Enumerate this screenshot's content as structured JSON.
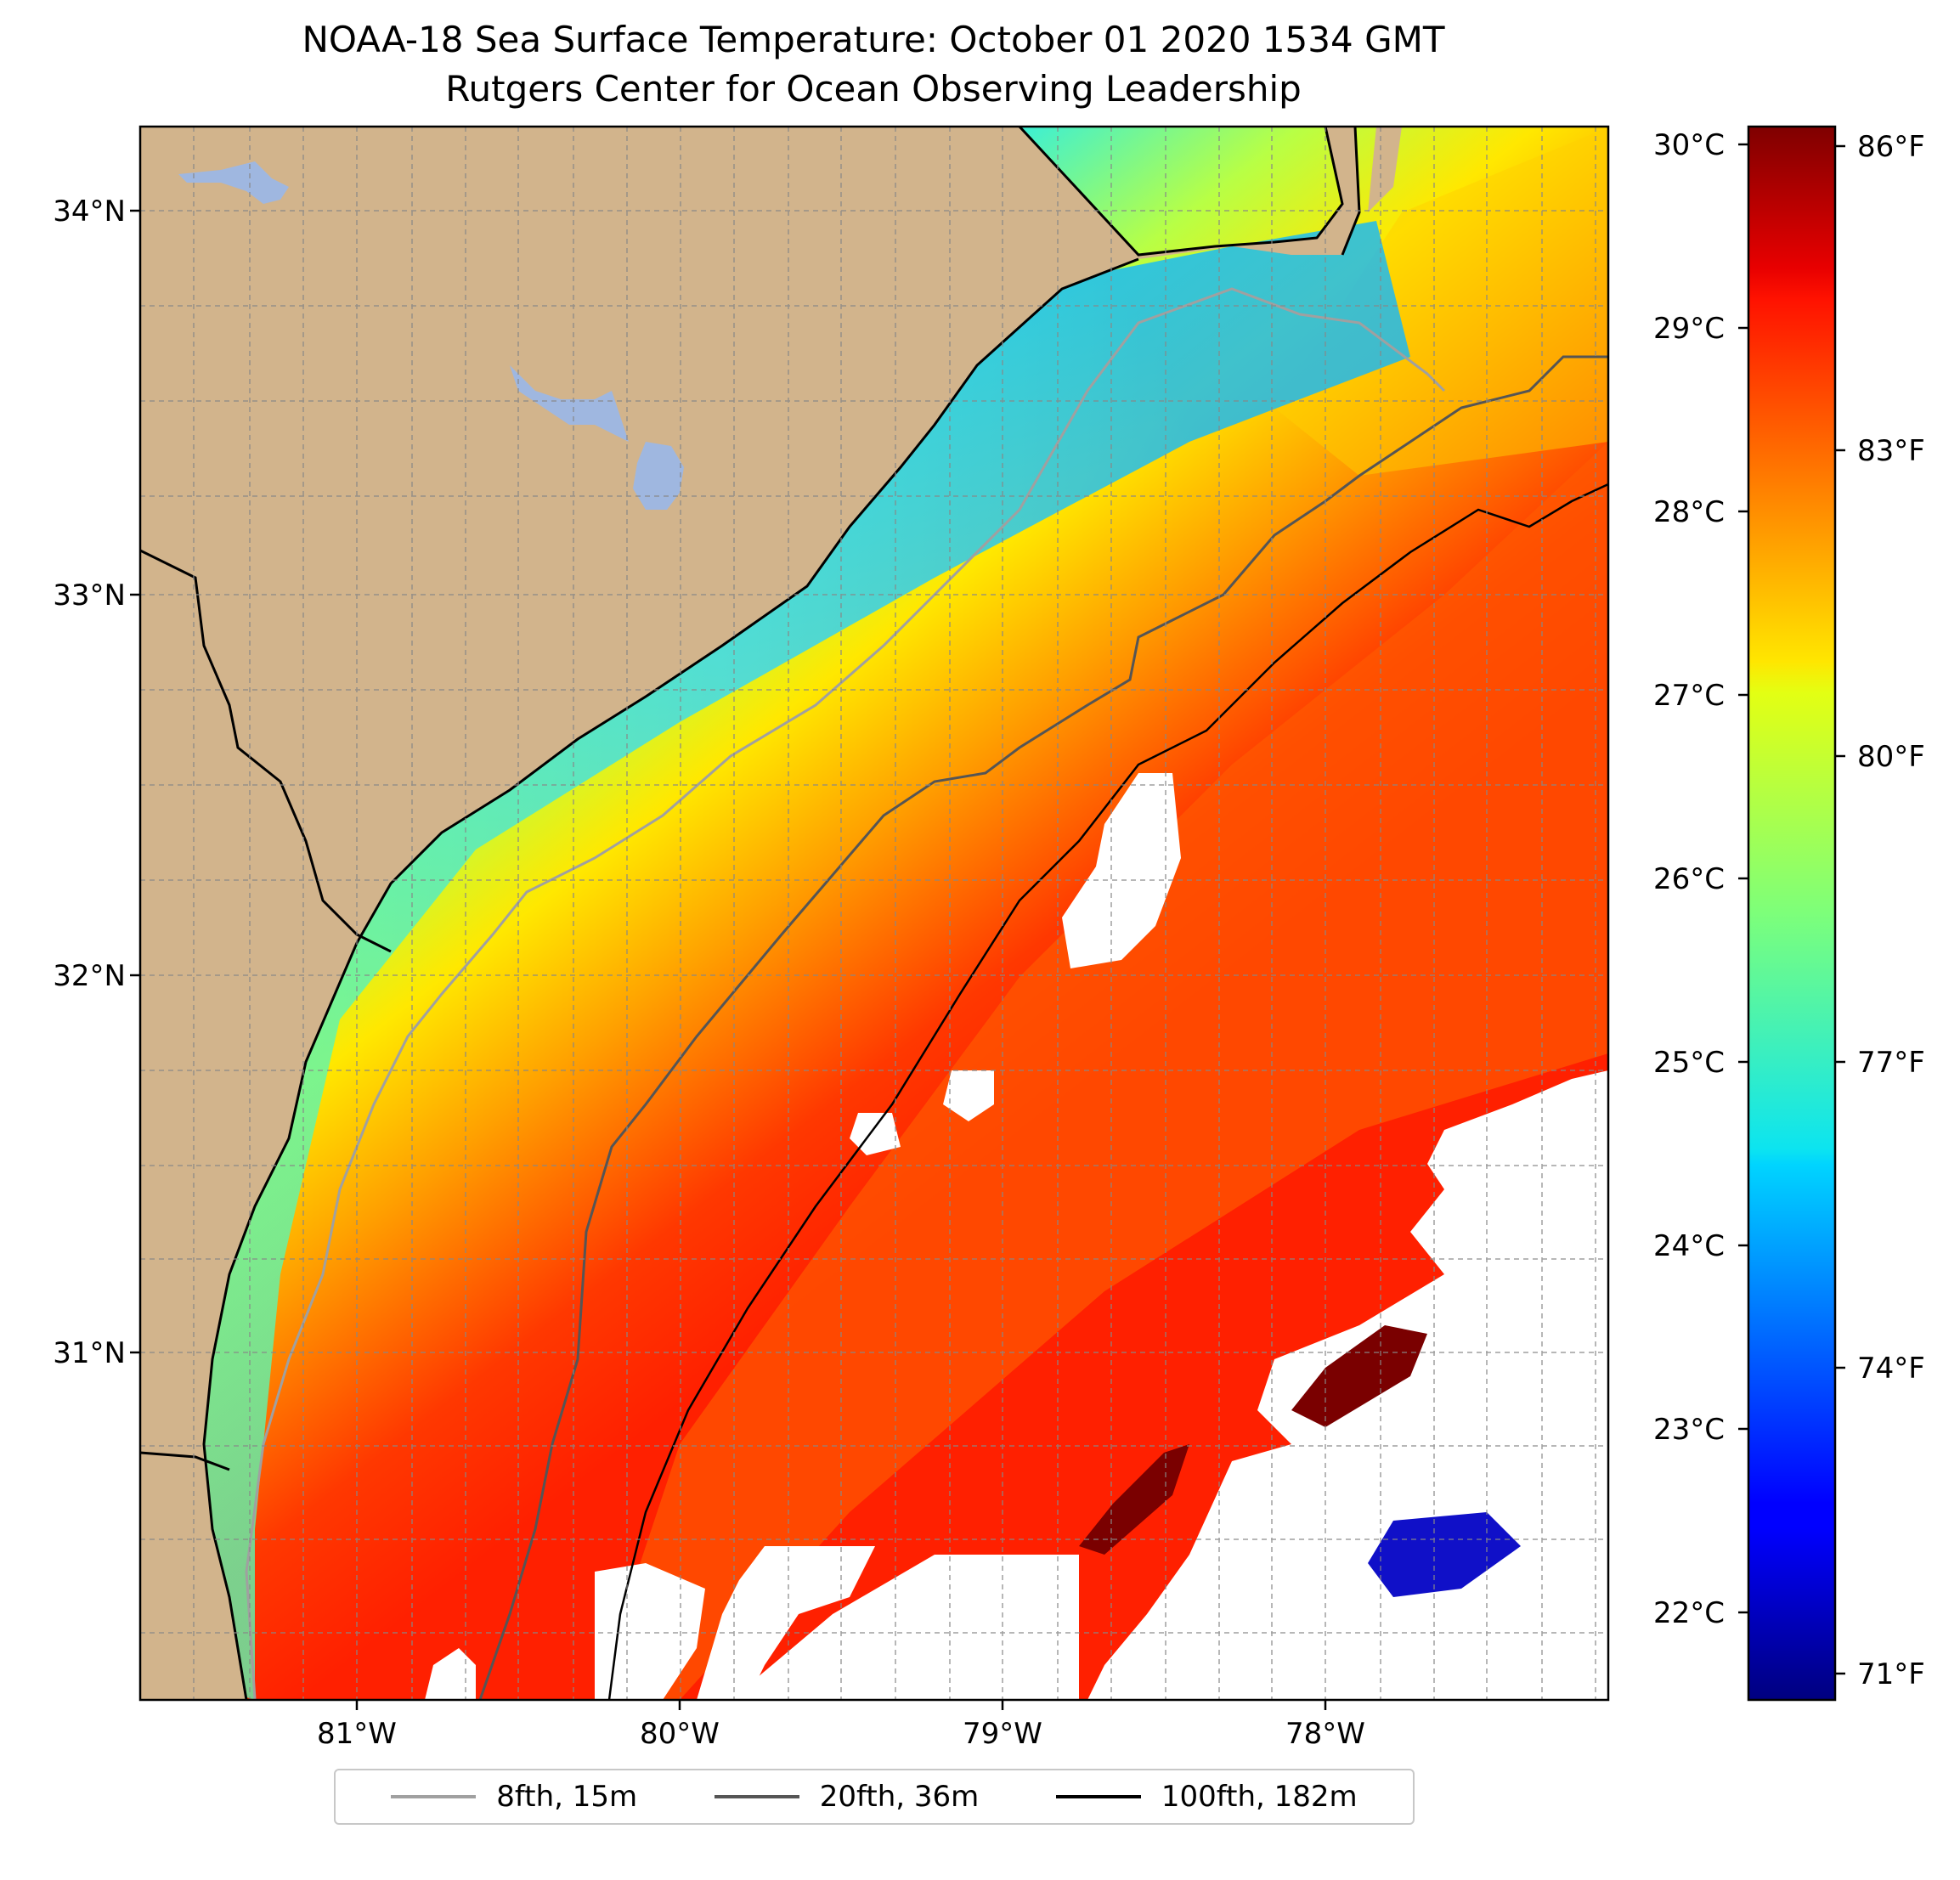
{
  "title": {
    "line1": "NOAA-18 Sea Surface Temperature: October 01 2020 1534 GMT",
    "line2": "Rutgers Center for Ocean Observing Leadership"
  },
  "map": {
    "land_color": "#d2b48c",
    "lake_color": "#9fb7e0",
    "cloud_mask_color": "#ffffff",
    "lat_labels": [
      "34°N",
      "33°N",
      "32°N",
      "31°N"
    ],
    "lon_labels": [
      "81°W",
      "80°W",
      "79°W",
      "78°W"
    ],
    "lon_range": [
      -81.67,
      -77.18
    ],
    "lat_range": [
      30.1,
      34.22
    ],
    "gridlines": true
  },
  "colorbar": {
    "cmap": "jet",
    "celsius_labels": [
      "30°C",
      "29°C",
      "28°C",
      "27°C",
      "26°C",
      "25°C",
      "24°C",
      "23°C",
      "22°C"
    ],
    "fahrenheit_labels": [
      "86°F",
      "83°F",
      "80°F",
      "77°F",
      "74°F",
      "71°F"
    ],
    "range_c": [
      21.5,
      30.1
    ]
  },
  "legend": [
    {
      "label": "8fth, 15m",
      "color": "#a0a0a0"
    },
    {
      "label": "20fth, 36m",
      "color": "#555555"
    },
    {
      "label": "100fth, 182m",
      "color": "#000000"
    }
  ]
}
